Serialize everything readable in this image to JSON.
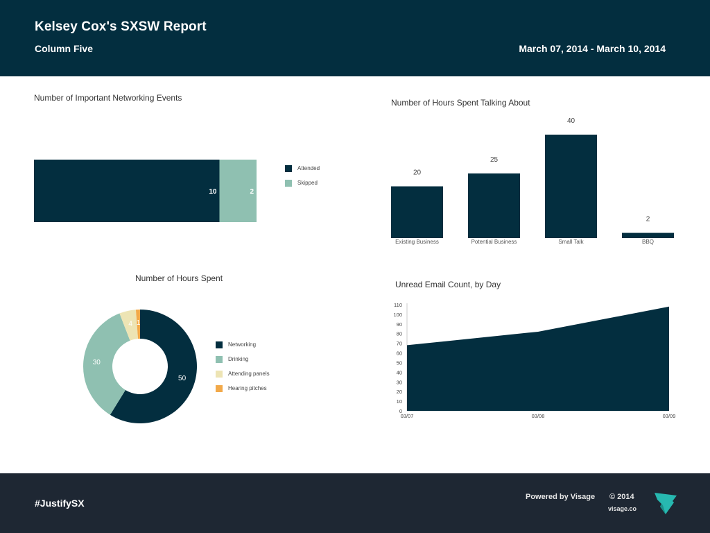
{
  "header": {
    "title": "Kelsey Cox's SXSW Report",
    "subtitle": "Column Five",
    "date_range": "March 07, 2014 - March 10, 2014",
    "background": "#032e3f"
  },
  "colors": {
    "dark": "#032e3f",
    "teal": "#8fc0b1",
    "cream": "#ede4b4",
    "orange": "#f2a94a"
  },
  "chart_data": [
    {
      "id": "networking",
      "type": "bar",
      "orientation": "horizontal-stacked",
      "title": "Number of Important Networking Events",
      "series": [
        {
          "name": "Attended",
          "value": 10,
          "color": "#032e3f"
        },
        {
          "name": "Skipped",
          "value": 2,
          "color": "#8fc0b1"
        }
      ],
      "legend": "right"
    },
    {
      "id": "talking",
      "type": "bar",
      "title": "Number of Hours Spent Talking About",
      "categories": [
        "Existing Business",
        "Potential Business",
        "Small Talk",
        "BBQ"
      ],
      "values": [
        20,
        25,
        40,
        2
      ],
      "color": "#032e3f",
      "ylim": [
        0,
        40
      ]
    },
    {
      "id": "hours",
      "type": "pie",
      "style": "donut",
      "title": "Number of Hours Spent",
      "slices": [
        {
          "name": "Networking",
          "value": 50,
          "color": "#032e3f"
        },
        {
          "name": "Drinking",
          "value": 30,
          "color": "#8fc0b1"
        },
        {
          "name": "Attending panels",
          "value": 4,
          "color": "#ede4b4"
        },
        {
          "name": "Hearing pitches",
          "value": 1,
          "color": "#f2a94a"
        }
      ],
      "legend": "right"
    },
    {
      "id": "email",
      "type": "area",
      "title": "Unread Email Count, by Day",
      "x": [
        "03/07",
        "03/08",
        "03/09"
      ],
      "y": [
        68,
        82,
        108
      ],
      "ylim": [
        0,
        110
      ],
      "yticks": [
        0,
        10,
        20,
        30,
        40,
        50,
        60,
        70,
        80,
        90,
        100,
        110
      ],
      "color": "#032e3f"
    }
  ],
  "footer": {
    "hashtag": "#JustifySX",
    "powered_by": "Powered by Visage",
    "copyright": "©  2014",
    "site": "visage.co"
  }
}
